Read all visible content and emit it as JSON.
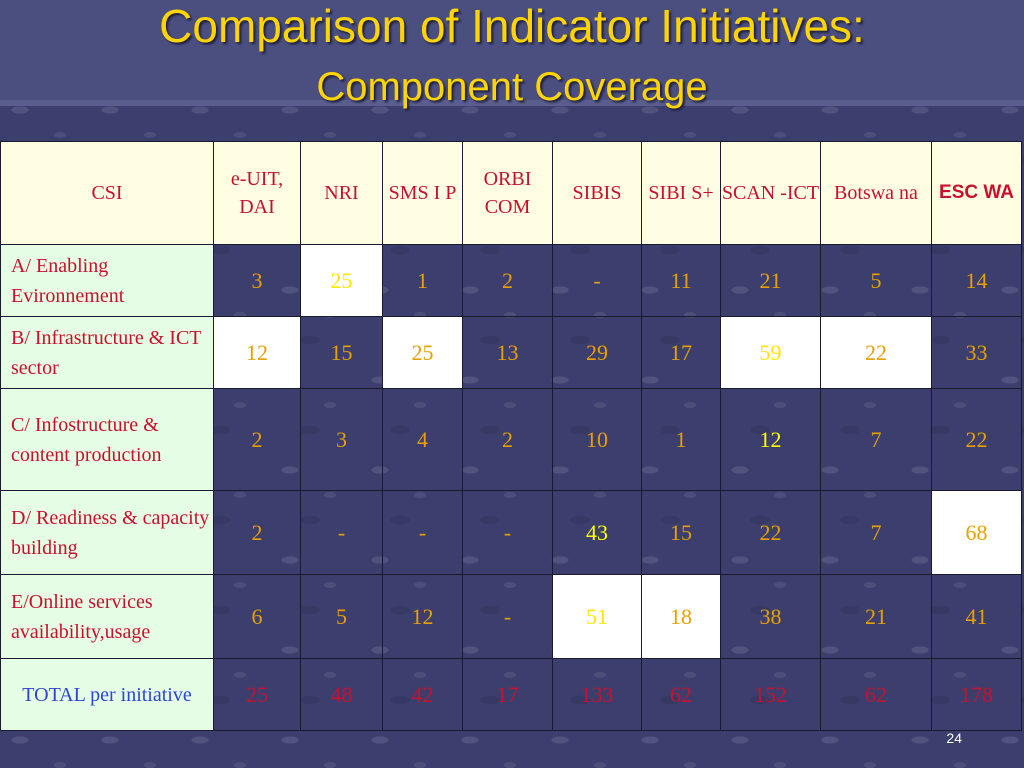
{
  "title": {
    "line1": "Comparison of Indicator Initiatives:",
    "line2": "Component Coverage"
  },
  "table": {
    "headers": [
      "CSI",
      "e-UIT, DAI",
      "NRI",
      "SMS I P",
      "ORBI COM",
      "SIBIS",
      "SIBI S+",
      "SCAN -ICT",
      "Botswa na",
      "ESC WA"
    ],
    "rows": [
      {
        "label": "A/ Enabling Evironnement",
        "values": [
          "3",
          "25",
          "1",
          "2",
          "-",
          "11",
          "21",
          "5",
          "14"
        ]
      },
      {
        "label": "B/ Infrastructure & ICT sector",
        "values": [
          "12",
          "15",
          "25",
          "13",
          "29",
          "17",
          "59",
          "22",
          "33"
        ]
      },
      {
        "label": "C/ Infostructure & content production",
        "values": [
          "2",
          "3",
          "4",
          "2",
          "10",
          "1",
          "12",
          "7",
          "22"
        ]
      },
      {
        "label": "D/ Readiness & capacity building",
        "values": [
          "2",
          "-",
          "-",
          "-",
          "43",
          "15",
          "22",
          "7",
          "68"
        ]
      },
      {
        "label": "E/Online services availability,usage",
        "values": [
          "6",
          "5",
          "12",
          "-",
          "51",
          "18",
          "38",
          "21",
          "41"
        ]
      }
    ],
    "total": {
      "label": "TOTAL per initiative",
      "values": [
        "25",
        "48",
        "42",
        "17",
        "133",
        "62",
        "152",
        "62",
        "178"
      ]
    }
  },
  "page_number": "24",
  "colors": {
    "background": "#3c3f6e",
    "title": "#ffd400",
    "header_bg": "#fffde2",
    "label_bg": "#e4fde4",
    "label_text": "#c8102e",
    "total_label": "#2a44d6"
  }
}
